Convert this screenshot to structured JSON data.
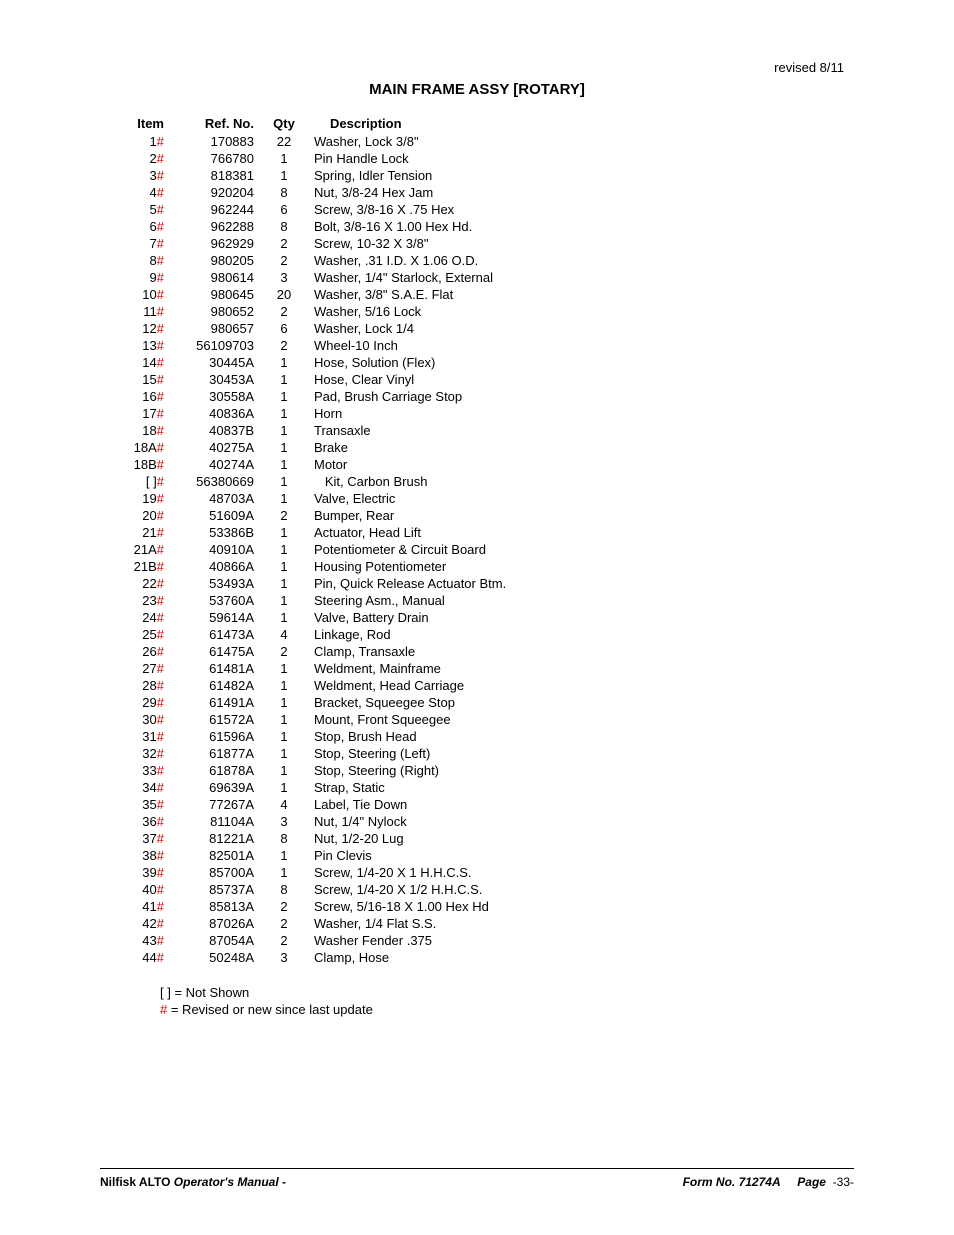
{
  "header": {
    "revised": "revised 8/11",
    "title": "MAIN FRAME ASSY [ROTARY]"
  },
  "columns": {
    "item": "Item",
    "ref": "Ref. No.",
    "qty": "Qty",
    "desc": "Description"
  },
  "rows": [
    {
      "item": "1",
      "hash": true,
      "ref": "170883",
      "qty": "22",
      "desc": "Washer, Lock 3/8\""
    },
    {
      "item": "2",
      "hash": true,
      "ref": "766780",
      "qty": "1",
      "desc": "Pin Handle Lock"
    },
    {
      "item": "3",
      "hash": true,
      "ref": "818381",
      "qty": "1",
      "desc": "Spring, Idler Tension"
    },
    {
      "item": "4",
      "hash": true,
      "ref": "920204",
      "qty": "8",
      "desc": "Nut, 3/8-24 Hex Jam"
    },
    {
      "item": "5",
      "hash": true,
      "ref": "962244",
      "qty": "6",
      "desc": "Screw, 3/8-16 X .75 Hex"
    },
    {
      "item": "6",
      "hash": true,
      "ref": "962288",
      "qty": "8",
      "desc": "Bolt, 3/8-16 X 1.00 Hex Hd."
    },
    {
      "item": "7",
      "hash": true,
      "ref": "962929",
      "qty": "2",
      "desc": "Screw,  10-32 X 3/8\""
    },
    {
      "item": "8",
      "hash": true,
      "ref": "980205",
      "qty": "2",
      "desc": "Washer, .31 I.D. X 1.06 O.D."
    },
    {
      "item": "9",
      "hash": true,
      "ref": "980614",
      "qty": "3",
      "desc": "Washer, 1/4\" Starlock, External"
    },
    {
      "item": "10",
      "hash": true,
      "ref": "980645",
      "qty": "20",
      "desc": "Washer, 3/8\" S.A.E. Flat"
    },
    {
      "item": "11",
      "hash": true,
      "ref": "980652",
      "qty": "2",
      "desc": "Washer, 5/16 Lock"
    },
    {
      "item": "12",
      "hash": true,
      "ref": "980657",
      "qty": "6",
      "desc": "Washer, Lock 1/4"
    },
    {
      "item": "13",
      "hash": true,
      "ref": "56109703",
      "qty": "2",
      "desc": "Wheel-10 Inch"
    },
    {
      "item": "14",
      "hash": true,
      "ref": "30445A",
      "qty": "1",
      "desc": "Hose, Solution (Flex)"
    },
    {
      "item": "15",
      "hash": true,
      "ref": "30453A",
      "qty": "1",
      "desc": "Hose, Clear Vinyl"
    },
    {
      "item": "16",
      "hash": true,
      "ref": "30558A",
      "qty": "1",
      "desc": "Pad, Brush Carriage Stop"
    },
    {
      "item": "17",
      "hash": true,
      "ref": "40836A",
      "qty": "1",
      "desc": "Horn"
    },
    {
      "item": "18",
      "hash": true,
      "ref": "40837B",
      "qty": "1",
      "desc": "Transaxle"
    },
    {
      "item": "18A",
      "hash": true,
      "ref": "40275A",
      "qty": "1",
      "desc": "Brake"
    },
    {
      "item": "18B",
      "hash": true,
      "ref": "40274A",
      "qty": "1",
      "desc": "Motor"
    },
    {
      "item": "[ ]",
      "hash": true,
      "ref": "56380669",
      "qty": "1",
      "desc": "   Kit, Carbon Brush"
    },
    {
      "item": "19",
      "hash": true,
      "ref": "48703A",
      "qty": "1",
      "desc": "Valve, Electric"
    },
    {
      "item": "20",
      "hash": true,
      "ref": "51609A",
      "qty": "2",
      "desc": "Bumper, Rear"
    },
    {
      "item": "21",
      "hash": true,
      "ref": "53386B",
      "qty": "1",
      "desc": "Actuator, Head Lift"
    },
    {
      "item": "21A",
      "hash": true,
      "ref": "40910A",
      "qty": "1",
      "desc": "Potentiometer & Circuit Board"
    },
    {
      "item": "21B",
      "hash": true,
      "ref": "40866A",
      "qty": "1",
      "desc": "Housing Potentiometer"
    },
    {
      "item": "22",
      "hash": true,
      "ref": "53493A",
      "qty": "1",
      "desc": "Pin, Quick Release Actuator Btm."
    },
    {
      "item": "23",
      "hash": true,
      "ref": "53760A",
      "qty": "1",
      "desc": "Steering Asm., Manual"
    },
    {
      "item": "24",
      "hash": true,
      "ref": "59614A",
      "qty": "1",
      "desc": "Valve, Battery Drain"
    },
    {
      "item": "25",
      "hash": true,
      "ref": "61473A",
      "qty": "4",
      "desc": "Linkage, Rod"
    },
    {
      "item": "26",
      "hash": true,
      "ref": "61475A",
      "qty": "2",
      "desc": "Clamp, Transaxle"
    },
    {
      "item": "27",
      "hash": true,
      "ref": "61481A",
      "qty": "1",
      "desc": "Weldment, Mainframe"
    },
    {
      "item": "28",
      "hash": true,
      "ref": "61482A",
      "qty": "1",
      "desc": "Weldment, Head Carriage"
    },
    {
      "item": "29",
      "hash": true,
      "ref": "61491A",
      "qty": "1",
      "desc": "Bracket, Squeegee Stop"
    },
    {
      "item": "30",
      "hash": true,
      "ref": "61572A",
      "qty": "1",
      "desc": "Mount, Front Squeegee"
    },
    {
      "item": "31",
      "hash": true,
      "ref": "61596A",
      "qty": "1",
      "desc": "Stop, Brush Head"
    },
    {
      "item": "32",
      "hash": true,
      "ref": "61877A",
      "qty": "1",
      "desc": "Stop, Steering (Left)"
    },
    {
      "item": "33",
      "hash": true,
      "ref": "61878A",
      "qty": "1",
      "desc": "Stop, Steering (Right)"
    },
    {
      "item": "34",
      "hash": true,
      "ref": "69639A",
      "qty": "1",
      "desc": "Strap, Static"
    },
    {
      "item": "35",
      "hash": true,
      "ref": "77267A",
      "qty": "4",
      "desc": "Label, Tie Down"
    },
    {
      "item": "36",
      "hash": true,
      "ref": "81104A",
      "qty": "3",
      "desc": "Nut, 1/4\" Nylock"
    },
    {
      "item": "37",
      "hash": true,
      "ref": "81221A",
      "qty": "8",
      "desc": "Nut, 1/2-20 Lug"
    },
    {
      "item": "38",
      "hash": true,
      "ref": "82501A",
      "qty": "1",
      "desc": "Pin Clevis"
    },
    {
      "item": "39",
      "hash": true,
      "ref": "85700A",
      "qty": "1",
      "desc": "Screw, 1/4-20 X 1 H.H.C.S."
    },
    {
      "item": "40",
      "hash": true,
      "ref": "85737A",
      "qty": "8",
      "desc": "Screw, 1/4-20 X 1/2 H.H.C.S."
    },
    {
      "item": "41",
      "hash": true,
      "ref": "85813A",
      "qty": "2",
      "desc": "Screw, 5/16-18 X 1.00 Hex Hd"
    },
    {
      "item": "42",
      "hash": true,
      "ref": "87026A",
      "qty": "2",
      "desc": "Washer, 1/4 Flat S.S."
    },
    {
      "item": "43",
      "hash": true,
      "ref": "87054A",
      "qty": "2",
      "desc": "Washer Fender .375"
    },
    {
      "item": "44",
      "hash": true,
      "ref": "50248A",
      "qty": "3",
      "desc": "Clamp, Hose"
    }
  ],
  "legend": {
    "not_shown": "[ ] = Not Shown",
    "hash_symbol": "#",
    "hash_text": " = Revised or new since last update"
  },
  "footer": {
    "brand": "Nilfisk ALTO",
    "manual": "  Operator's Manual - ",
    "form": "Form No. 71274A",
    "page_label": "Page",
    "page_no": "-33-"
  }
}
